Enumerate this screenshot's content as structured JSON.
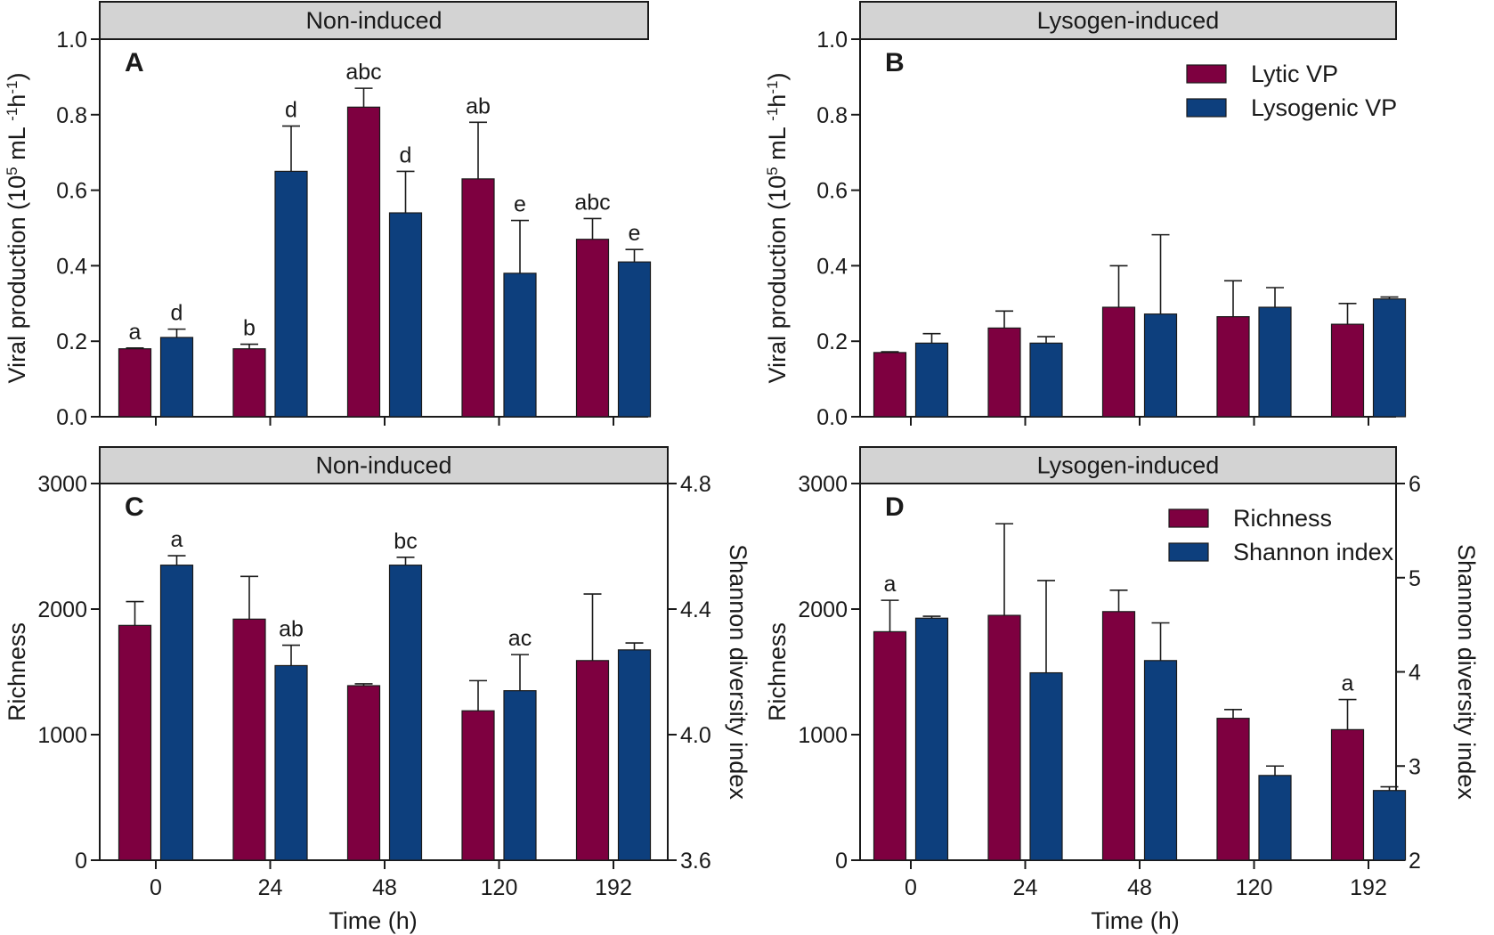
{
  "colors": {
    "series1": "#7e0040",
    "series2": "#0d3f7d",
    "strip": "#d3d3d3",
    "ink": "#1a1a1a"
  },
  "chart_data": [
    {
      "id": "A",
      "type": "bar",
      "panel_letter": "A",
      "strip_title": "Non-induced",
      "categories": [
        "0",
        "24",
        "48",
        "120",
        "192"
      ],
      "xlabel": "",
      "ylabel_lines": [
        "Viral production (10",
        "5",
        " mL ",
        "-1",
        "h",
        "-1",
        ")"
      ],
      "ylim": [
        0,
        1.0
      ],
      "yticks": [
        "0.0",
        "0.2",
        "0.4",
        "0.6",
        "0.8",
        "1.0"
      ],
      "show_xtick_labels": false,
      "series": [
        {
          "name": "Lytic VP",
          "values": [
            0.18,
            0.18,
            0.82,
            0.63,
            0.47
          ],
          "errors": [
            0.002,
            0.012,
            0.05,
            0.15,
            0.055
          ],
          "letters": [
            "a",
            "b",
            "abc",
            "ab",
            "abc"
          ]
        },
        {
          "name": "Lysogenic VP",
          "values": [
            0.21,
            0.65,
            0.54,
            0.38,
            0.41
          ],
          "errors": [
            0.022,
            0.12,
            0.11,
            0.14,
            0.033
          ],
          "letters": [
            "d",
            "d",
            "d",
            "e",
            "e"
          ]
        }
      ],
      "legend": null
    },
    {
      "id": "B",
      "type": "bar",
      "panel_letter": "B",
      "strip_title": "Lysogen-induced",
      "categories": [
        "0",
        "24",
        "48",
        "120",
        "192"
      ],
      "xlabel": "",
      "ylabel_lines": [
        "Viral production (10",
        "5",
        " mL ",
        "-1",
        "h",
        "-1",
        ")"
      ],
      "ylim": [
        0,
        1.0
      ],
      "yticks": [
        "0.0",
        "0.2",
        "0.4",
        "0.6",
        "0.8",
        "1.0"
      ],
      "show_xtick_labels": false,
      "series": [
        {
          "name": "Lytic VP",
          "values": [
            0.17,
            0.235,
            0.29,
            0.265,
            0.245
          ],
          "errors": [
            0.002,
            0.045,
            0.11,
            0.095,
            0.055
          ],
          "letters": [
            "",
            "",
            "",
            "",
            ""
          ]
        },
        {
          "name": "Lysogenic VP",
          "values": [
            0.195,
            0.195,
            0.272,
            0.29,
            0.312
          ],
          "errors": [
            0.025,
            0.017,
            0.21,
            0.052,
            0.005
          ],
          "letters": [
            "",
            "",
            "",
            "",
            ""
          ]
        }
      ],
      "legend": {
        "position": "top-right",
        "entries": [
          "Lytic VP",
          "Lysogenic VP"
        ]
      }
    },
    {
      "id": "C",
      "type": "bar",
      "panel_letter": "C",
      "strip_title": "Non-induced",
      "categories": [
        "0",
        "24",
        "48",
        "120",
        "192"
      ],
      "xlabel": "Time (h)",
      "ylabel": "Richness",
      "ylabel_right": "Shannon diversity index",
      "ylim": [
        0,
        3000
      ],
      "yticks": [
        "0",
        "1000",
        "2000",
        "3000"
      ],
      "ylim_right": [
        3.6,
        4.8
      ],
      "yticks_right": [
        "3.6",
        "4.0",
        "4.4",
        "4.8"
      ],
      "show_xtick_labels": true,
      "series": [
        {
          "name": "Richness",
          "axis": "left",
          "values": [
            1870,
            1920,
            1390,
            1190,
            1590
          ],
          "errors": [
            190,
            340,
            15,
            240,
            530
          ],
          "letters": [
            "",
            "",
            "",
            "",
            ""
          ]
        },
        {
          "name": "Shannon index",
          "axis": "right",
          "values": [
            4.54,
            4.22,
            4.54,
            4.14,
            4.27
          ],
          "errors": [
            0.03,
            0.065,
            0.025,
            0.115,
            0.022
          ],
          "letters": [
            "a",
            "ab",
            "bc",
            "ac",
            ""
          ]
        }
      ],
      "legend": null
    },
    {
      "id": "D",
      "type": "bar",
      "panel_letter": "D",
      "strip_title": "Lysogen-induced",
      "categories": [
        "0",
        "24",
        "48",
        "120",
        "192"
      ],
      "xlabel": "Time (h)",
      "ylabel": "Richness",
      "ylabel_right": "Shannon diversity index",
      "ylim": [
        0,
        3000
      ],
      "yticks": [
        "0",
        "1000",
        "2000",
        "3000"
      ],
      "ylim_right": [
        2,
        6
      ],
      "yticks_right": [
        "2",
        "3",
        "4",
        "5",
        "6"
      ],
      "show_xtick_labels": true,
      "series": [
        {
          "name": "Richness",
          "axis": "left",
          "values": [
            1820,
            1950,
            1980,
            1130,
            1040
          ],
          "errors": [
            250,
            730,
            170,
            70,
            240
          ],
          "letters": [
            "a",
            "",
            "",
            "",
            "a"
          ]
        },
        {
          "name": "Shannon index",
          "axis": "right",
          "values": [
            4.57,
            3.99,
            4.12,
            2.9,
            2.74
          ],
          "errors": [
            0.02,
            0.98,
            0.4,
            0.1,
            0.04
          ],
          "letters": [
            "",
            "",
            "",
            "",
            ""
          ]
        }
      ],
      "legend": {
        "position": "top-right",
        "entries": [
          "Richness",
          "Shannon index"
        ]
      }
    }
  ]
}
